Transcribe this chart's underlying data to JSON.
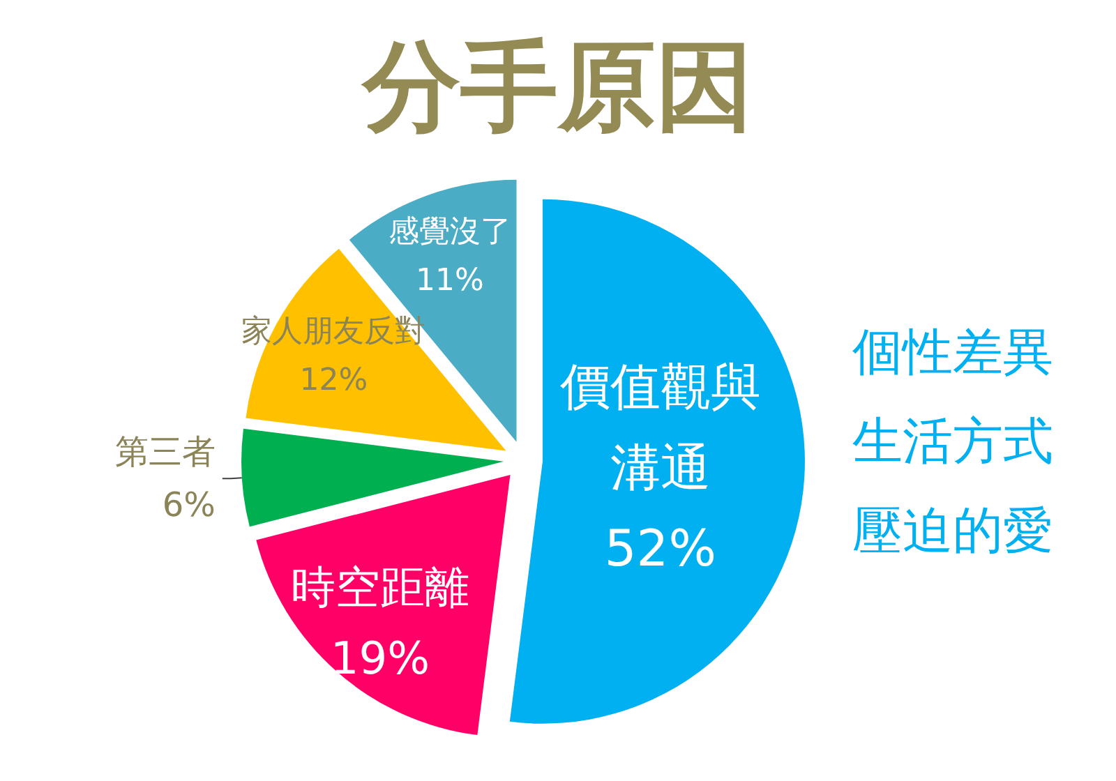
{
  "chart_data": {
    "type": "pie",
    "title": "分手原因",
    "categories": [
      "價值觀與溝通",
      "時空距離",
      "第三者",
      "家人朋友反對",
      "感覺沒了"
    ],
    "values": [
      52,
      19,
      6,
      12,
      11
    ],
    "colors": [
      "#00b0f0",
      "#ff0066",
      "#00b050",
      "#ffc000",
      "#4bacc6"
    ],
    "value_labels": [
      "52%",
      "19%",
      "6%",
      "12%",
      "11%"
    ],
    "annotations": [
      "個性差異",
      "生活方式",
      "壓迫的愛"
    ]
  }
}
